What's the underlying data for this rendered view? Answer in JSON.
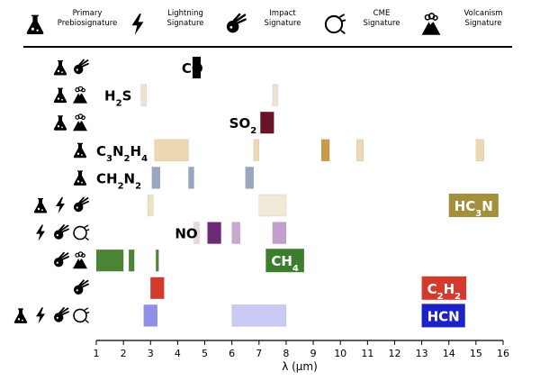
{
  "legend": {
    "items": [
      {
        "key": "primary",
        "icon": "flask-icon",
        "line1": "Primary",
        "line2": "Prebiosignature"
      },
      {
        "key": "lightning",
        "icon": "lightning-bolt-icon",
        "line1": "Lightning",
        "line2": "Signature"
      },
      {
        "key": "impact",
        "icon": "meteor-icon",
        "line1": "Impact",
        "line2": "Signature"
      },
      {
        "key": "cme",
        "icon": "cme-circle-icon",
        "line1": "CME",
        "line2": "Signature"
      },
      {
        "key": "volcanism",
        "icon": "volcano-icon",
        "line1": "Volcanism",
        "line2": "Signature"
      }
    ]
  },
  "chart_data": {
    "type": "bar",
    "orientation": "horizontal-ranges",
    "xlabel": "λ (μm)",
    "xlim": [
      1,
      16
    ],
    "xticks": [
      "1",
      "2",
      "3",
      "4",
      "5",
      "6",
      "7",
      "8",
      "9",
      "10",
      "11",
      "12",
      "13",
      "14",
      "15",
      "16"
    ],
    "rows": [
      {
        "molecule": "CO",
        "label_html": "CO",
        "signatures": [
          "primary",
          "impact"
        ],
        "label_x": 4.15,
        "label_style": "plain",
        "bands": [
          {
            "x0": 4.55,
            "x1": 4.85,
            "color": "#000000"
          }
        ]
      },
      {
        "molecule": "H2S",
        "label_html": "H<tspan baseline-shift='sub' font-size='10'>2</tspan>S",
        "signatures": [
          "primary",
          "volcanism"
        ],
        "label_x": 1.3,
        "label_style": "plain",
        "bands": [
          {
            "x0": 2.65,
            "x1": 2.85,
            "color": "#ede3d2"
          },
          {
            "x0": 7.5,
            "x1": 7.7,
            "color": "#ede3d2"
          }
        ]
      },
      {
        "molecule": "SO2",
        "label_html": "SO<tspan baseline-shift='sub' font-size='10'>2</tspan>",
        "signatures": [
          "primary",
          "volcanism"
        ],
        "label_x": 5.9,
        "label_style": "plain",
        "bands": [
          {
            "x0": 7.05,
            "x1": 7.55,
            "color": "#6a1428"
          }
        ]
      },
      {
        "molecule": "C3N2H4",
        "label_html": "C<tspan baseline-shift='sub' font-size='10'>3</tspan>N<tspan baseline-shift='sub' font-size='10'>2</tspan>H<tspan baseline-shift='sub' font-size='10'>4</tspan>",
        "signatures": [
          "primary"
        ],
        "label_x": 1.0,
        "label_style": "plain",
        "bands": [
          {
            "x0": 3.15,
            "x1": 4.4,
            "color": "#ecd9b2"
          },
          {
            "x0": 6.8,
            "x1": 7.0,
            "color": "#ecd9b2"
          },
          {
            "x0": 9.3,
            "x1": 9.6,
            "color": "#c89a4a"
          },
          {
            "x0": 10.6,
            "x1": 10.85,
            "color": "#ecd9b2"
          },
          {
            "x0": 15.0,
            "x1": 15.3,
            "color": "#ecd9b2"
          }
        ]
      },
      {
        "molecule": "CH2N2",
        "label_html": "CH<tspan baseline-shift='sub' font-size='10'>2</tspan>N<tspan baseline-shift='sub' font-size='10'>2</tspan>",
        "signatures": [
          "primary"
        ],
        "label_x": 1.0,
        "label_style": "plain",
        "bands": [
          {
            "x0": 3.05,
            "x1": 3.35,
            "color": "#99a6c0"
          },
          {
            "x0": 4.4,
            "x1": 4.6,
            "color": "#99a6c0"
          },
          {
            "x0": 6.5,
            "x1": 6.8,
            "color": "#99a6c0"
          }
        ]
      },
      {
        "molecule": "HC3N",
        "label_html": "HC<tspan baseline-shift='sub' font-size='10'>3</tspan>N",
        "signatures": [
          "primary",
          "lightning",
          "impact"
        ],
        "label_x": 14.0,
        "label_style": "boxed",
        "label_bg": "#a38f3c",
        "bands": [
          {
            "x0": 2.9,
            "x1": 3.1,
            "color": "#ede3c8"
          },
          {
            "x0": 7.0,
            "x1": 8.0,
            "color": "#f0ead8"
          }
        ]
      },
      {
        "molecule": "NO",
        "label_html": "NO",
        "signatures": [
          "lightning",
          "impact",
          "cme"
        ],
        "label_x": 3.9,
        "label_style": "plain",
        "bands": [
          {
            "x0": 4.6,
            "x1": 4.8,
            "color": "#e6d6e6"
          },
          {
            "x0": 5.1,
            "x1": 5.6,
            "color": "#6c2a74"
          },
          {
            "x0": 6.0,
            "x1": 6.3,
            "color": "#c8a8d0"
          },
          {
            "x0": 7.5,
            "x1": 8.0,
            "color": "#c49fcc"
          }
        ]
      },
      {
        "molecule": "CH4",
        "label_html": "CH<tspan baseline-shift='sub' font-size='10'>4</tspan>",
        "signatures": [
          "impact",
          "volcanism"
        ],
        "label_x": 7.25,
        "label_style": "boxed",
        "label_bg": "#3f7d2e",
        "bands": [
          {
            "x0": 1.0,
            "x1": 2.0,
            "color": "#4a8536"
          },
          {
            "x0": 2.2,
            "x1": 2.4,
            "color": "#4a8536"
          },
          {
            "x0": 3.2,
            "x1": 3.3,
            "color": "#4a8536"
          }
        ]
      },
      {
        "molecule": "C2H2",
        "label_html": "C<tspan baseline-shift='sub' font-size='10'>2</tspan>H<tspan baseline-shift='sub' font-size='10'>2</tspan>",
        "signatures": [
          "impact"
        ],
        "label_x": 13.0,
        "label_style": "boxed",
        "label_bg": "#d23a2e",
        "bands": [
          {
            "x0": 3.0,
            "x1": 3.5,
            "color": "#d23a2e"
          }
        ]
      },
      {
        "molecule": "HCN",
        "label_html": "HCN",
        "signatures": [
          "primary",
          "lightning",
          "impact",
          "cme"
        ],
        "label_x": 13.0,
        "label_style": "boxed",
        "label_bg": "#1a22c8",
        "bands": [
          {
            "x0": 2.75,
            "x1": 3.25,
            "color": "#8f8fe8"
          },
          {
            "x0": 6.0,
            "x1": 8.0,
            "color": "#c9c9f4"
          }
        ]
      }
    ]
  }
}
